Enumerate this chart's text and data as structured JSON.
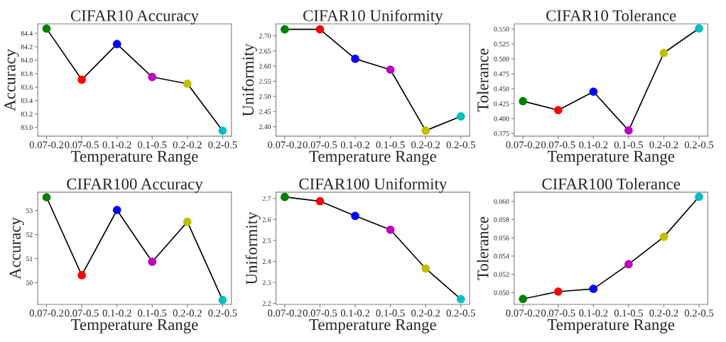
{
  "chart_data": [
    {
      "type": "line",
      "title": "CIFAR10 Accuracy",
      "xlabel": "Temperature Range",
      "ylabel": "Accuracy",
      "categories": [
        "0.07-0.2",
        "0.07-0.5",
        "0.1-0.2",
        "0.1-0.5",
        "0.2-0.2",
        "0.2-0.5"
      ],
      "ylim": [
        82.87,
        84.54
      ],
      "yticks": [
        {
          "value": 83.0,
          "label": "83.0"
        },
        {
          "value": 83.2,
          "label": "83.2"
        },
        {
          "value": 83.4,
          "label": "83.4"
        },
        {
          "value": 83.6,
          "label": "83.6"
        },
        {
          "value": 83.8,
          "label": "83.8"
        },
        {
          "value": 84.0,
          "label": "84.0"
        },
        {
          "value": 84.2,
          "label": "84.2"
        },
        {
          "value": 84.4,
          "label": "84.4"
        }
      ],
      "grid": false,
      "legend": false,
      "marker": "circle",
      "series": [
        {
          "color": "#000000",
          "colors": [
            "#008000",
            "#ff0000",
            "#0000ff",
            "#bf00bf",
            "#bfbf00",
            "#00bfbf"
          ],
          "values": [
            84.47,
            83.71,
            84.24,
            83.75,
            83.65,
            82.95
          ]
        }
      ]
    },
    {
      "type": "line",
      "title": "CIFAR10 Uniformity",
      "xlabel": "Temperature Range",
      "ylabel": "Uniformity",
      "categories": [
        "0.07-0.2",
        "0.07-0.5",
        "0.1-0.2",
        "0.1-0.5",
        "0.2-0.2",
        "0.2-0.5"
      ],
      "ylim": [
        2.369,
        2.739
      ],
      "yticks": [
        {
          "value": 2.4,
          "label": "2.40"
        },
        {
          "value": 2.45,
          "label": "2.45"
        },
        {
          "value": 2.5,
          "label": "2.50"
        },
        {
          "value": 2.55,
          "label": "2.55"
        },
        {
          "value": 2.6,
          "label": "2.60"
        },
        {
          "value": 2.65,
          "label": "2.65"
        },
        {
          "value": 2.7,
          "label": "2.70"
        }
      ],
      "grid": false,
      "legend": false,
      "marker": "circle",
      "series": [
        {
          "color": "#000000",
          "colors": [
            "#008000",
            "#ff0000",
            "#0000ff",
            "#bf00bf",
            "#bfbf00",
            "#00bfbf"
          ],
          "values": [
            2.721,
            2.721,
            2.624,
            2.588,
            2.387,
            2.434
          ]
        }
      ]
    },
    {
      "type": "line",
      "title": "CIFAR10 Tolerance",
      "xlabel": "Temperature Range",
      "ylabel": "Tolerance",
      "categories": [
        "0.07-0.2",
        "0.07-0.5",
        "0.1-0.2",
        "0.1-0.5",
        "0.2-0.2",
        "0.2-0.5"
      ],
      "ylim": [
        0.3705,
        0.5585
      ],
      "yticks": [
        {
          "value": 0.375,
          "label": "0.375"
        },
        {
          "value": 0.4,
          "label": "0.400"
        },
        {
          "value": 0.425,
          "label": "0.425"
        },
        {
          "value": 0.45,
          "label": "0.450"
        },
        {
          "value": 0.475,
          "label": "0.475"
        },
        {
          "value": 0.5,
          "label": "0.500"
        },
        {
          "value": 0.525,
          "label": "0.525"
        },
        {
          "value": 0.55,
          "label": "0.550"
        }
      ],
      "grid": false,
      "legend": false,
      "marker": "circle",
      "series": [
        {
          "color": "#000000",
          "colors": [
            "#008000",
            "#ff0000",
            "#0000ff",
            "#bf00bf",
            "#bfbf00",
            "#00bfbf"
          ],
          "values": [
            0.429,
            0.414,
            0.445,
            0.38,
            0.51,
            0.551
          ]
        }
      ]
    },
    {
      "type": "line",
      "title": "CIFAR100 Accuracy",
      "xlabel": "Temperature Range",
      "ylabel": "Accuracy",
      "categories": [
        "0.07-0.2",
        "0.07-0.5",
        "0.1-0.2",
        "0.1-0.5",
        "0.2-0.2",
        "0.2-0.5"
      ],
      "ylim": [
        49.1,
        53.76
      ],
      "yticks": [
        50,
        51,
        52,
        53
      ],
      "grid": false,
      "legend": false,
      "marker": "circle",
      "series": [
        {
          "color": "#000000",
          "colors": [
            "#008000",
            "#ff0000",
            "#0000ff",
            "#bf00bf",
            "#bfbf00",
            "#00bfbf"
          ],
          "values": [
            53.55,
            50.31,
            53.02,
            50.87,
            52.53,
            49.28
          ]
        }
      ]
    },
    {
      "type": "line",
      "title": "CIFAR100 Uniformity",
      "xlabel": "Temperature Range",
      "ylabel": "Uniformity",
      "categories": [
        "0.07-0.2",
        "0.07-0.5",
        "0.1-0.2",
        "0.1-0.5",
        "0.2-0.2",
        "0.2-0.5"
      ],
      "ylim": [
        2.195,
        2.73
      ],
      "yticks": [
        2.2,
        2.3,
        2.4,
        2.5,
        2.6,
        2.7
      ],
      "grid": false,
      "legend": false,
      "marker": "circle",
      "series": [
        {
          "color": "#000000",
          "colors": [
            "#008000",
            "#ff0000",
            "#0000ff",
            "#bf00bf",
            "#bfbf00",
            "#00bfbf"
          ],
          "values": [
            2.707,
            2.687,
            2.617,
            2.551,
            2.366,
            2.22
          ]
        }
      ]
    },
    {
      "type": "line",
      "title": "CIFAR100 Tolerance",
      "xlabel": "Temperature Range",
      "ylabel": "Tolerance",
      "categories": [
        "0.07-0.2",
        "0.07-0.5",
        "0.1-0.2",
        "0.1-0.5",
        "0.2-0.2",
        "0.2-0.5"
      ],
      "ylim": [
        0.0487,
        0.061
      ],
      "yticks": [
        {
          "value": 0.05,
          "label": "0.050"
        },
        {
          "value": 0.052,
          "label": "0.052"
        },
        {
          "value": 0.054,
          "label": "0.054"
        },
        {
          "value": 0.056,
          "label": "0.056"
        },
        {
          "value": 0.058,
          "label": "0.058"
        },
        {
          "value": 0.06,
          "label": "0.060"
        }
      ],
      "grid": false,
      "legend": false,
      "marker": "circle",
      "series": [
        {
          "color": "#000000",
          "colors": [
            "#008000",
            "#ff0000",
            "#0000ff",
            "#bf00bf",
            "#bfbf00",
            "#00bfbf"
          ],
          "values": [
            0.0493,
            0.0501,
            0.0504,
            0.0531,
            0.0561,
            0.0605
          ]
        }
      ]
    }
  ]
}
